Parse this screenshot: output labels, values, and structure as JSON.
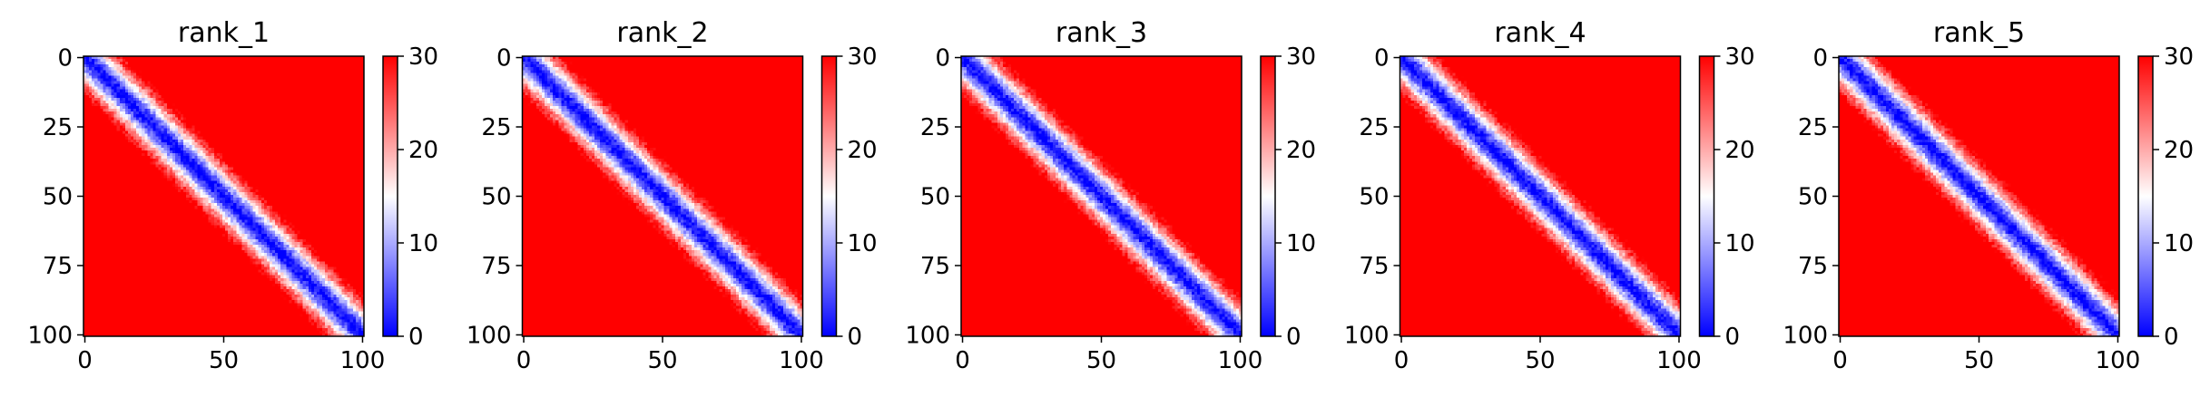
{
  "chart_data": [
    {
      "type": "heatmap",
      "title": "rank_1",
      "matrix_size": 101,
      "x_ticks": [
        0,
        50,
        100
      ],
      "y_ticks": [
        0,
        25,
        50,
        75,
        100
      ],
      "colorbar": {
        "min": 0,
        "max": 30,
        "ticks": [
          0,
          10,
          20,
          30
        ]
      },
      "colormap": {
        "low": "#0000ff",
        "mid": "#ffffff",
        "high": "#ff0000"
      }
    },
    {
      "type": "heatmap",
      "title": "rank_2",
      "matrix_size": 101,
      "x_ticks": [
        0,
        50,
        100
      ],
      "y_ticks": [
        0,
        25,
        50,
        75,
        100
      ],
      "colorbar": {
        "min": 0,
        "max": 30,
        "ticks": [
          0,
          10,
          20,
          30
        ]
      },
      "colormap": {
        "low": "#0000ff",
        "mid": "#ffffff",
        "high": "#ff0000"
      }
    },
    {
      "type": "heatmap",
      "title": "rank_3",
      "matrix_size": 101,
      "x_ticks": [
        0,
        50,
        100
      ],
      "y_ticks": [
        0,
        25,
        50,
        75,
        100
      ],
      "colorbar": {
        "min": 0,
        "max": 30,
        "ticks": [
          0,
          10,
          20,
          30
        ]
      },
      "colormap": {
        "low": "#0000ff",
        "mid": "#ffffff",
        "high": "#ff0000"
      }
    },
    {
      "type": "heatmap",
      "title": "rank_4",
      "matrix_size": 101,
      "x_ticks": [
        0,
        50,
        100
      ],
      "y_ticks": [
        0,
        25,
        50,
        75,
        100
      ],
      "colorbar": {
        "min": 0,
        "max": 30,
        "ticks": [
          0,
          10,
          20,
          30
        ]
      },
      "colormap": {
        "low": "#0000ff",
        "mid": "#ffffff",
        "high": "#ff0000"
      }
    },
    {
      "type": "heatmap",
      "title": "rank_5",
      "matrix_size": 101,
      "x_ticks": [
        0,
        50,
        100
      ],
      "y_ticks": [
        0,
        25,
        50,
        75,
        100
      ],
      "colorbar": {
        "min": 0,
        "max": 30,
        "ticks": [
          0,
          10,
          20,
          30
        ]
      },
      "colormap": {
        "low": "#0000ff",
        "mid": "#ffffff",
        "high": "#ff0000"
      }
    }
  ]
}
